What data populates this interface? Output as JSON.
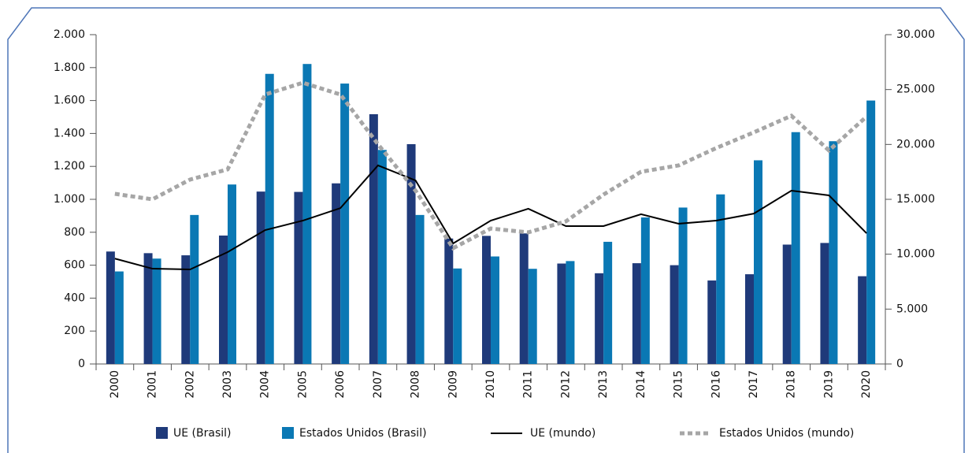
{
  "chart_data": {
    "type": "bar",
    "categories": [
      "2000",
      "2001",
      "2002",
      "2003",
      "2004",
      "2005",
      "2006",
      "2007",
      "2008",
      "2009",
      "2010",
      "2011",
      "2012",
      "2013",
      "2014",
      "2015",
      "2016",
      "2017",
      "2018",
      "2019",
      "2020"
    ],
    "series": [
      {
        "name": "UE (Brasil)",
        "color": "#1f3a7a",
        "type": "bar",
        "values": [
          683,
          673,
          660,
          780,
          1047,
          1045,
          1097,
          1517,
          1335,
          762,
          778,
          793,
          610,
          551,
          612,
          600,
          507,
          545,
          725,
          735,
          533
        ]
      },
      {
        "name": "Estados Unidos (Brasil)",
        "color": "#0a78b4",
        "type": "bar",
        "values": [
          562,
          640,
          905,
          1090,
          1762,
          1822,
          1703,
          1300,
          905,
          580,
          653,
          578,
          625,
          742,
          890,
          950,
          1030,
          1237,
          1408,
          1353,
          1600
        ]
      },
      {
        "name": "UE (mundo)",
        "color": "#000000",
        "type": "line",
        "axis": "y2",
        "values": [
          9600,
          8680,
          8610,
          10190,
          12200,
          13060,
          14200,
          18090,
          16720,
          10980,
          13060,
          14140,
          12560,
          12560,
          13640,
          12780,
          13060,
          13700,
          15790,
          15360,
          11910
        ]
      },
      {
        "name": "Estados Unidos (mundo)",
        "color": "#a6a6a6",
        "type": "dashed-line",
        "axis": "y2",
        "values": [
          15500,
          15000,
          16800,
          17730,
          24550,
          25620,
          24550,
          20020,
          15790,
          10550,
          12340,
          11990,
          12990,
          15430,
          17510,
          18090,
          19670,
          21100,
          22610,
          19450,
          22540
        ]
      }
    ],
    "ylim": [
      0,
      2000
    ],
    "yticks": [
      0,
      200,
      400,
      600,
      800,
      {
        "value": 1000,
        "label": "1.000"
      },
      {
        "value": 1200,
        "label": "1.200"
      },
      {
        "value": 1400,
        "label": "1.400"
      },
      {
        "value": 1600,
        "label": "1.600"
      },
      {
        "value": 1800,
        "label": "1.800"
      },
      {
        "value": 2000,
        "label": "2.000"
      }
    ],
    "y2lim": [
      0,
      30000
    ],
    "y2ticks": [
      0,
      {
        "value": 5000,
        "label": "5.000"
      },
      {
        "value": 10000,
        "label": "10.000"
      },
      {
        "value": 15000,
        "label": "15.000"
      },
      {
        "value": 20000,
        "label": "20.000"
      },
      {
        "value": 25000,
        "label": "25.000"
      },
      {
        "value": 30000,
        "label": "30.000"
      }
    ],
    "legend": "bottom"
  }
}
